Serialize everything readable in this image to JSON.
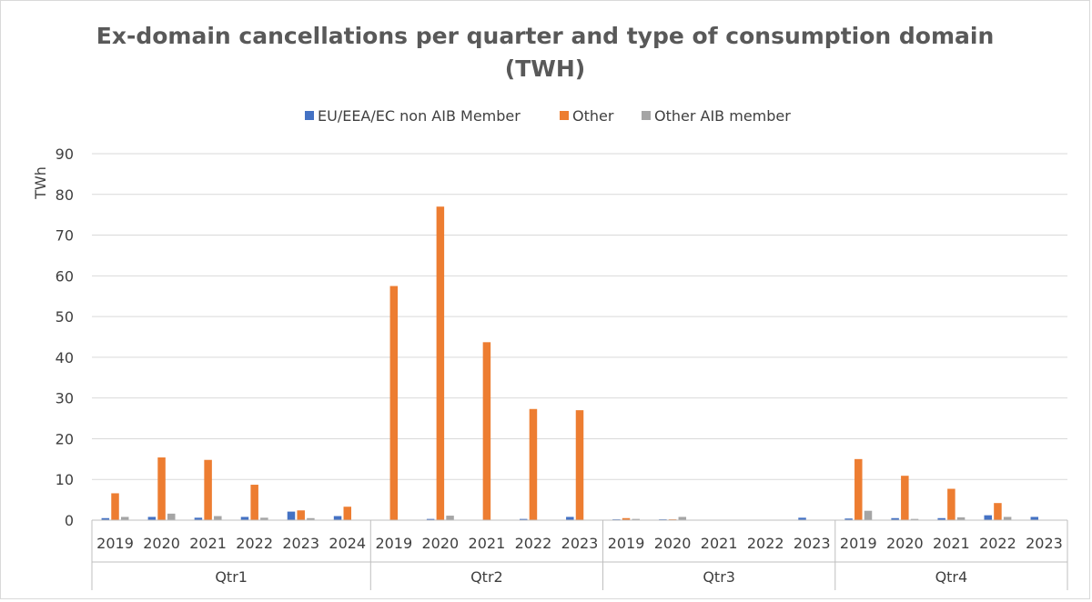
{
  "chart_data": {
    "type": "bar",
    "title_line1": "Ex-domain cancellations per quarter and type of consumption domain",
    "title_line2": "(TWH)",
    "ylabel": "TWh",
    "ylim": [
      0,
      90
    ],
    "yticks": [
      0,
      10,
      20,
      30,
      40,
      50,
      60,
      70,
      80,
      90
    ],
    "grid": true,
    "legend_position": "top",
    "groups": [
      {
        "label": "Qtr1",
        "categories": [
          "2019",
          "2020",
          "2021",
          "2022",
          "2023",
          "2024"
        ]
      },
      {
        "label": "Qtr2",
        "categories": [
          "2019",
          "2020",
          "2021",
          "2022",
          "2023"
        ]
      },
      {
        "label": "Qtr3",
        "categories": [
          "2019",
          "2020",
          "2021",
          "2022",
          "2023"
        ]
      },
      {
        "label": "Qtr4",
        "categories": [
          "2019",
          "2020",
          "2021",
          "2022",
          "2023"
        ]
      }
    ],
    "series": [
      {
        "name": "EU/EEA/EC non AIB Member",
        "color": "#4472c4",
        "values": [
          0.5,
          0.8,
          0.6,
          0.8,
          2.1,
          1.0,
          0.0,
          0.3,
          0.0,
          0.3,
          0.8,
          0.2,
          0.2,
          0.0,
          0.0,
          0.6,
          0.4,
          0.5,
          0.5,
          1.2,
          0.8
        ]
      },
      {
        "name": "Other",
        "color": "#ed7d31",
        "values": [
          6.6,
          15.4,
          14.8,
          8.7,
          2.4,
          3.3,
          57.5,
          77.0,
          43.7,
          27.3,
          27.0,
          0.5,
          0.2,
          0.0,
          0.1,
          0.0,
          15.0,
          10.9,
          7.7,
          4.2,
          0.0
        ]
      },
      {
        "name": "Other AIB member",
        "color": "#a5a5a5",
        "values": [
          0.8,
          1.6,
          1.0,
          0.6,
          0.5,
          0.0,
          0.0,
          1.1,
          0.0,
          0.0,
          0.0,
          0.3,
          0.8,
          0.1,
          0.1,
          0.0,
          2.3,
          0.3,
          0.7,
          0.8,
          0.0
        ]
      }
    ]
  }
}
